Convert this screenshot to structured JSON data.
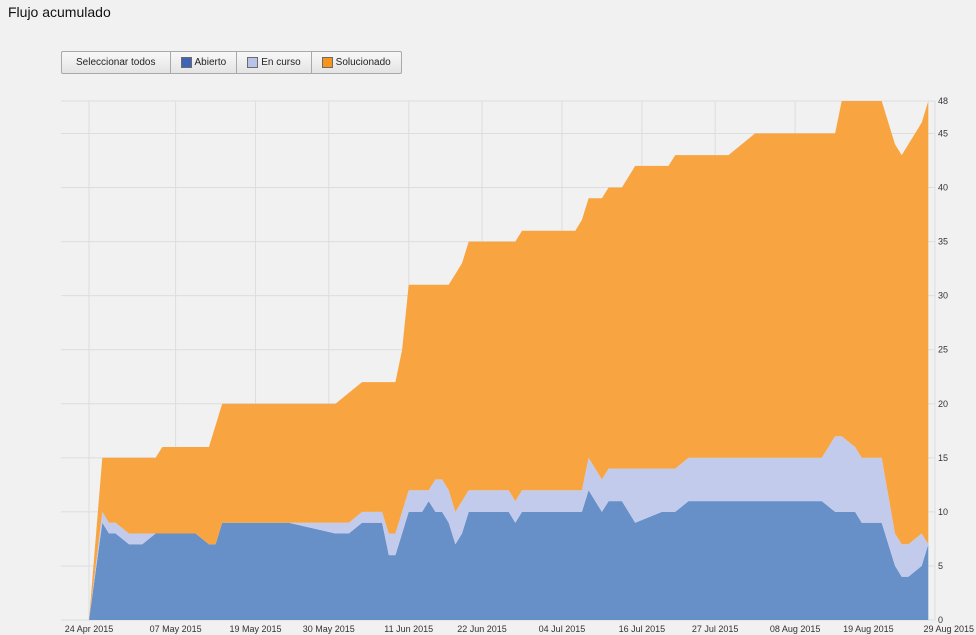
{
  "page": {
    "title": "Flujo acumulado"
  },
  "legend": {
    "select_all": "Seleccionar todos",
    "items": [
      {
        "label": "Abierto",
        "color": "#3f63b5"
      },
      {
        "label": "En curso",
        "color": "#b8c3ea"
      },
      {
        "label": "Solucionado",
        "color": "#f7941d"
      }
    ]
  },
  "colors": {
    "abierto_fill": "#6690c7",
    "en_curso_fill": "#c3cbec",
    "solucionado_fill": "#f8a541",
    "grid": "#dddddd",
    "background": "#f1f1f1"
  },
  "chart_data": {
    "type": "area",
    "stacked": true,
    "title": "Flujo acumulado",
    "xlabel": "",
    "ylabel": "",
    "ylim": [
      0,
      48
    ],
    "yticks": [
      0,
      5,
      10,
      15,
      20,
      25,
      30,
      35,
      40,
      45,
      48
    ],
    "y_axis_position": "right",
    "xlim": [
      "2015-04-24",
      "2015-08-29"
    ],
    "xticks": [
      {
        "date": "2015-04-24",
        "label": "24 Apr 2015"
      },
      {
        "date": "2015-05-07",
        "label": "07 May 2015"
      },
      {
        "date": "2015-05-19",
        "label": "19 May 2015"
      },
      {
        "date": "2015-05-30",
        "label": "30 May 2015"
      },
      {
        "date": "2015-06-11",
        "label": "11 Jun 2015"
      },
      {
        "date": "2015-06-22",
        "label": "22 Jun 2015"
      },
      {
        "date": "2015-07-04",
        "label": "04 Jul 2015"
      },
      {
        "date": "2015-07-16",
        "label": "16 Jul 2015"
      },
      {
        "date": "2015-07-27",
        "label": "27 Jul 2015"
      },
      {
        "date": "2015-08-08",
        "label": "08 Aug 2015"
      },
      {
        "date": "2015-08-19",
        "label": "19 Aug 2015"
      },
      {
        "date": "2015-08-29",
        "label": "29 Aug 2015"
      }
    ],
    "grid": true,
    "legend_position": "top-left",
    "x": [
      "2015-04-24",
      "2015-04-26",
      "2015-04-27",
      "2015-04-28",
      "2015-04-30",
      "2015-05-02",
      "2015-05-04",
      "2015-05-05",
      "2015-05-06",
      "2015-05-07",
      "2015-05-10",
      "2015-05-12",
      "2015-05-13",
      "2015-05-14",
      "2015-05-16",
      "2015-05-17",
      "2015-05-24",
      "2015-05-31",
      "2015-06-02",
      "2015-06-04",
      "2015-06-07",
      "2015-06-08",
      "2015-06-09",
      "2015-06-10",
      "2015-06-11",
      "2015-06-13",
      "2015-06-14",
      "2015-06-15",
      "2015-06-16",
      "2015-06-17",
      "2015-06-18",
      "2015-06-19",
      "2015-06-20",
      "2015-06-21",
      "2015-06-22",
      "2015-06-24",
      "2015-06-26",
      "2015-06-27",
      "2015-06-28",
      "2015-07-03",
      "2015-07-04",
      "2015-07-05",
      "2015-07-06",
      "2015-07-07",
      "2015-07-08",
      "2015-07-10",
      "2015-07-11",
      "2015-07-13",
      "2015-07-15",
      "2015-07-19",
      "2015-07-20",
      "2015-07-21",
      "2015-07-23",
      "2015-07-29",
      "2015-08-02",
      "2015-08-08",
      "2015-08-12",
      "2015-08-14",
      "2015-08-15",
      "2015-08-17",
      "2015-08-18",
      "2015-08-21",
      "2015-08-23",
      "2015-08-24",
      "2015-08-25",
      "2015-08-27",
      "2015-08-28"
    ],
    "series": [
      {
        "name": "Abierto",
        "values": [
          0,
          9,
          8,
          8,
          7,
          7,
          8,
          8,
          8,
          8,
          8,
          7,
          7,
          9,
          9,
          9,
          9,
          8,
          8,
          9,
          9,
          6,
          6,
          8,
          10,
          10,
          11,
          10,
          10,
          9,
          7,
          8,
          10,
          10,
          10,
          10,
          10,
          9,
          10,
          10,
          10,
          10,
          10,
          10,
          12,
          10,
          11,
          11,
          9,
          10,
          10,
          10,
          11,
          11,
          11,
          11,
          11,
          10,
          10,
          10,
          9,
          9,
          5,
          4,
          4,
          5,
          7
        ]
      },
      {
        "name": "En curso",
        "values": [
          0,
          1,
          1,
          1,
          1,
          1,
          0,
          0,
          0,
          0,
          0,
          0,
          0,
          0,
          0,
          0,
          0,
          1,
          1,
          1,
          1,
          2,
          2,
          2,
          2,
          2,
          1,
          3,
          3,
          3,
          3,
          3,
          2,
          2,
          2,
          2,
          2,
          2,
          2,
          2,
          2,
          2,
          2,
          2,
          3,
          3,
          3,
          3,
          5,
          4,
          4,
          4,
          4,
          4,
          4,
          4,
          4,
          7,
          7,
          6,
          6,
          6,
          3,
          3,
          3,
          3,
          0
        ]
      },
      {
        "name": "Solucionado",
        "values": [
          0,
          5,
          6,
          6,
          7,
          7,
          7,
          8,
          8,
          8,
          8,
          9,
          11,
          11,
          11,
          11,
          11,
          11,
          12,
          12,
          12,
          14,
          14,
          15,
          19,
          19,
          19,
          18,
          18,
          19,
          22,
          22,
          23,
          23,
          23,
          23,
          23,
          24,
          24,
          24,
          24,
          24,
          24,
          25,
          24,
          26,
          26,
          26,
          28,
          28,
          28,
          29,
          28,
          28,
          30,
          30,
          30,
          28,
          31,
          32,
          33,
          33,
          36,
          36,
          37,
          38,
          41
        ]
      }
    ]
  }
}
